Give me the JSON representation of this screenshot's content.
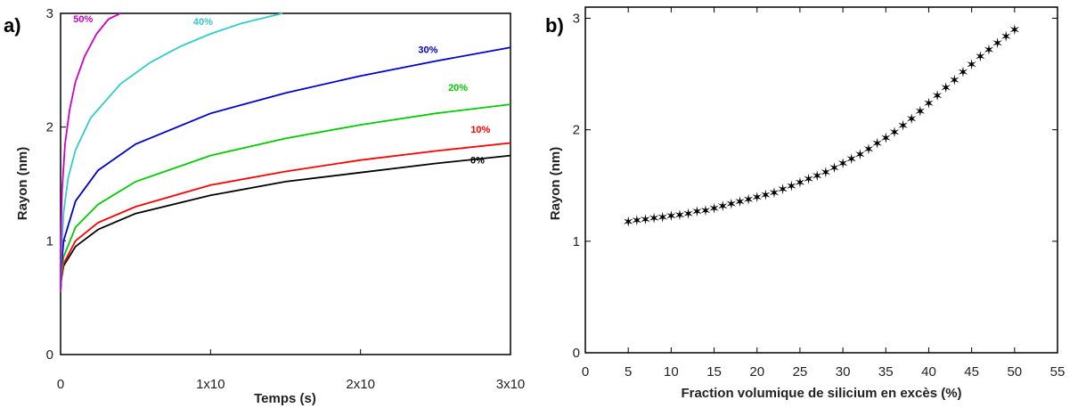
{
  "chart_data": [
    {
      "panel": "a)",
      "type": "line",
      "xlabel": "Temps (s)",
      "ylabel": "Rayon (nm)",
      "xlim": [
        0,
        3
      ],
      "ylim": [
        0,
        3
      ],
      "x_ticks": [
        {
          "value": 0,
          "label": "0"
        },
        {
          "value": 1,
          "label": "1x10"
        },
        {
          "value": 2,
          "label": "2x10"
        },
        {
          "value": 3,
          "label": "3x10"
        }
      ],
      "y_ticks": [
        {
          "value": 0,
          "label": "0"
        },
        {
          "value": 1,
          "label": "1"
        },
        {
          "value": 2,
          "label": "2"
        },
        {
          "value": 3,
          "label": "3"
        }
      ],
      "grid": false,
      "series": [
        {
          "name": "0%",
          "color": "#000000",
          "x": [
            0,
            0.005,
            0.02,
            0.1,
            0.25,
            0.5,
            1.0,
            1.5,
            2.0,
            2.5,
            3.0
          ],
          "y": [
            0.55,
            0.66,
            0.78,
            0.95,
            1.1,
            1.24,
            1.4,
            1.52,
            1.6,
            1.68,
            1.75
          ]
        },
        {
          "name": "10%",
          "color": "#ff0000",
          "x": [
            0,
            0.005,
            0.02,
            0.1,
            0.25,
            0.5,
            1.0,
            1.5,
            2.0,
            2.5,
            3.0
          ],
          "y": [
            0.55,
            0.67,
            0.8,
            1.0,
            1.16,
            1.3,
            1.49,
            1.61,
            1.71,
            1.79,
            1.86
          ]
        },
        {
          "name": "20%",
          "color": "#00cc00",
          "x": [
            0,
            0.005,
            0.02,
            0.1,
            0.25,
            0.5,
            1.0,
            1.5,
            2.0,
            2.5,
            3.0
          ],
          "y": [
            0.55,
            0.7,
            0.86,
            1.12,
            1.32,
            1.52,
            1.75,
            1.9,
            2.02,
            2.12,
            2.2
          ]
        },
        {
          "name": "30%",
          "color": "#0000cc",
          "x": [
            0,
            0.005,
            0.02,
            0.1,
            0.25,
            0.5,
            1.0,
            1.5,
            2.0,
            2.5,
            3.0
          ],
          "y": [
            0.55,
            0.76,
            1.0,
            1.35,
            1.62,
            1.85,
            2.12,
            2.3,
            2.45,
            2.58,
            2.7
          ]
        },
        {
          "name": "40%",
          "color": "#33cccc",
          "x": [
            0,
            0.005,
            0.02,
            0.05,
            0.1,
            0.2,
            0.4,
            0.6,
            0.8,
            1.0,
            1.2,
            1.48
          ],
          "y": [
            0.55,
            0.88,
            1.25,
            1.55,
            1.8,
            2.08,
            2.38,
            2.57,
            2.71,
            2.82,
            2.91,
            3.0
          ]
        },
        {
          "name": "50%",
          "color": "#cc00cc",
          "x": [
            0,
            0.003,
            0.01,
            0.03,
            0.06,
            0.1,
            0.16,
            0.24,
            0.32,
            0.4
          ],
          "y": [
            0.55,
            1.05,
            1.45,
            1.85,
            2.15,
            2.4,
            2.62,
            2.82,
            2.95,
            3.0
          ]
        }
      ]
    },
    {
      "panel": "b)",
      "type": "scatter",
      "xlabel": "Fraction volumique de silicium en excès (%)",
      "ylabel": "Rayon (nm)",
      "xlim": [
        0,
        55
      ],
      "ylim": [
        0,
        3.1
      ],
      "x_ticks": [
        0,
        5,
        10,
        15,
        20,
        25,
        30,
        35,
        40,
        45,
        50,
        55
      ],
      "y_ticks": [
        0,
        1,
        2,
        3
      ],
      "grid": false,
      "marker": "star",
      "x": [
        5,
        6,
        7,
        8,
        9,
        10,
        11,
        12,
        13,
        14,
        15,
        16,
        17,
        18,
        19,
        20,
        21,
        22,
        23,
        24,
        25,
        26,
        27,
        28,
        29,
        30,
        31,
        32,
        33,
        34,
        35,
        36,
        37,
        38,
        39,
        40,
        41,
        42,
        43,
        44,
        45,
        46,
        47,
        48,
        49,
        50
      ],
      "y": [
        1.18,
        1.19,
        1.2,
        1.21,
        1.22,
        1.23,
        1.24,
        1.25,
        1.27,
        1.28,
        1.3,
        1.32,
        1.34,
        1.36,
        1.38,
        1.4,
        1.42,
        1.44,
        1.47,
        1.5,
        1.53,
        1.56,
        1.59,
        1.62,
        1.66,
        1.7,
        1.74,
        1.78,
        1.83,
        1.88,
        1.93,
        1.98,
        2.04,
        2.1,
        2.17,
        2.24,
        2.31,
        2.38,
        2.45,
        2.52,
        2.59,
        2.66,
        2.72,
        2.78,
        2.84,
        2.9
      ]
    }
  ]
}
